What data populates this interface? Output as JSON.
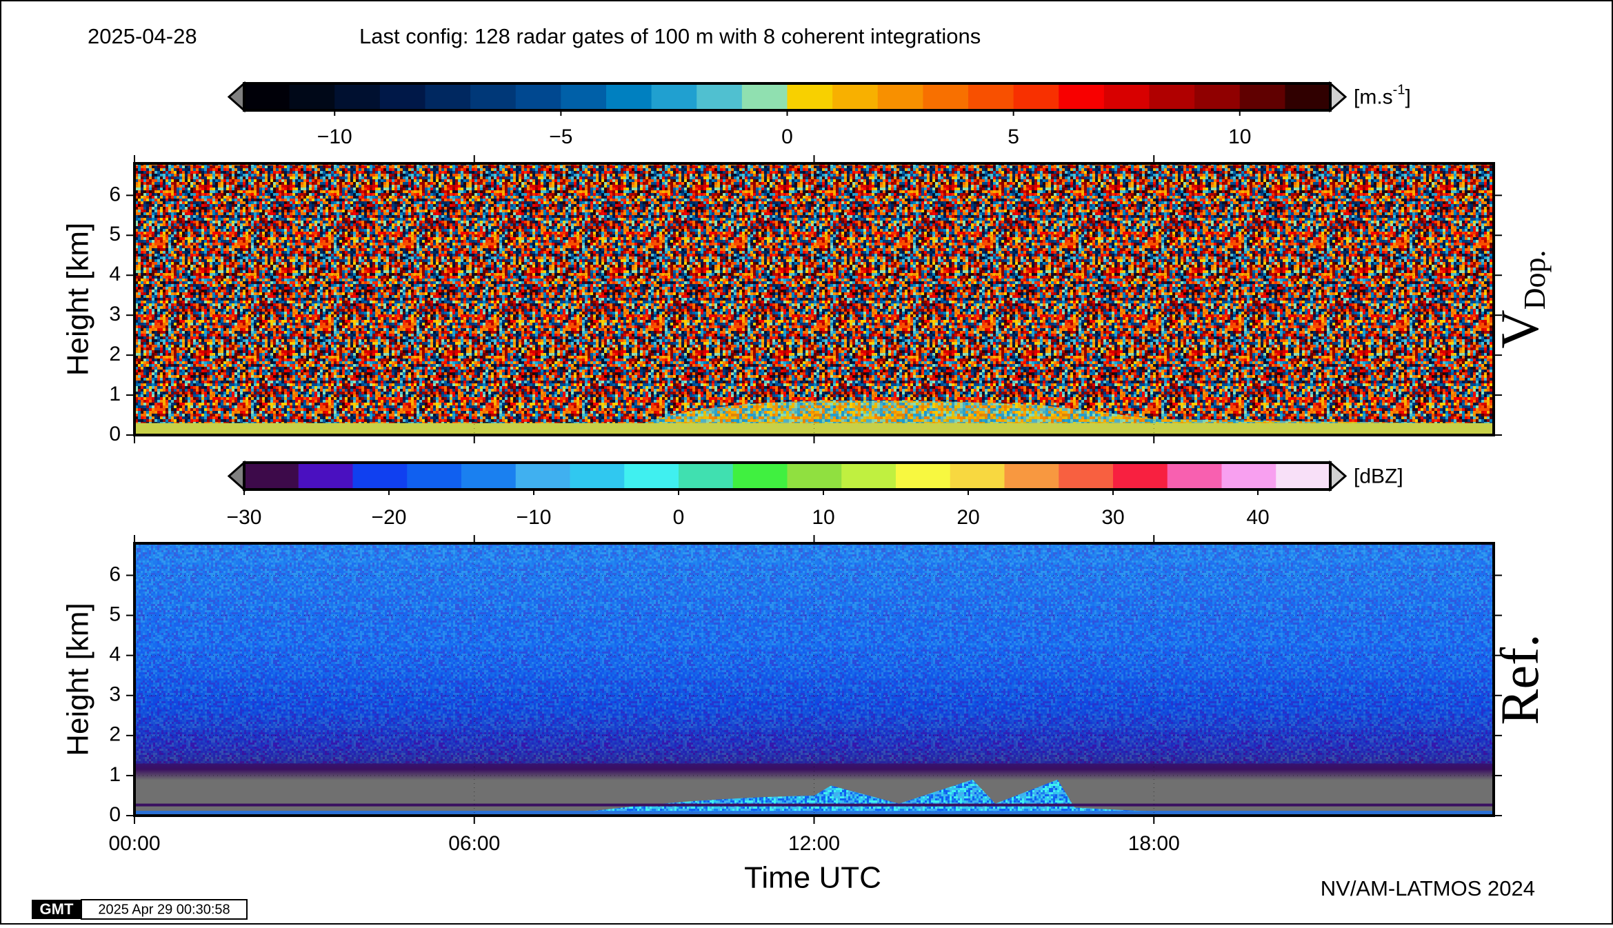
{
  "header": {
    "date": "2025-04-28",
    "config": "Last config: 128 radar gates of 100 m with 8 coherent integrations"
  },
  "chart_data": [
    {
      "type": "heatmap",
      "panel_label": "V",
      "panel_label_sub": "Dop.",
      "ylabel": "Height [km]",
      "ylim": [
        0,
        6.8
      ],
      "yticks": [
        0,
        1,
        2,
        3,
        4,
        5,
        6
      ],
      "xlim": [
        0,
        24
      ],
      "xticks": [
        0,
        6,
        12,
        18
      ],
      "grid": true,
      "colorbar": {
        "unit": [
          "[m.s",
          "-1",
          "]"
        ],
        "lim": [
          -12,
          12
        ],
        "ticks": [
          {
            "value": -10,
            "label": "−10"
          },
          {
            "value": -5,
            "label": "−5"
          },
          0,
          5,
          10
        ],
        "colors": [
          "#000008",
          "#000818",
          "#001030",
          "#001848",
          "#002860",
          "#003878",
          "#004890",
          "#0060a8",
          "#0080c0",
          "#20a0d0",
          "#50c0d0",
          "#90e0b0",
          "#f8d000",
          "#f8b000",
          "#f89000",
          "#f87000",
          "#f85000",
          "#f83000",
          "#f80000",
          "#d80000",
          "#b00000",
          "#900000",
          "#600000",
          "#300000"
        ]
      }
    },
    {
      "type": "heatmap",
      "panel_label": "Ref.",
      "ylabel": "Height [km]",
      "xlabel": "Time UTC",
      "ylim": [
        0,
        6.8
      ],
      "yticks": [
        0,
        1,
        2,
        3,
        4,
        5,
        6
      ],
      "xlim": [
        0,
        24
      ],
      "xticks": [
        {
          "value": 0,
          "label": "00:00"
        },
        {
          "value": 6,
          "label": "06:00"
        },
        {
          "value": 12,
          "label": "12:00"
        },
        {
          "value": 18,
          "label": "18:00"
        }
      ],
      "grid": true,
      "colorbar": {
        "unit": [
          "[dBZ]"
        ],
        "lim": [
          -30,
          45
        ],
        "ticks": [
          {
            "value": -30,
            "label": "−30"
          },
          {
            "value": -20,
            "label": "−20"
          },
          {
            "value": -10,
            "label": "−10"
          },
          0,
          10,
          20,
          30,
          40
        ],
        "colors": [
          "#3d0a4a",
          "#4a10c0",
          "#1040f0",
          "#1060f0",
          "#1a80f0",
          "#40b0f0",
          "#30c8f0",
          "#40f0f0",
          "#40e0b0",
          "#40f040",
          "#90e040",
          "#c0f040",
          "#f8f840",
          "#f8d840",
          "#f89840",
          "#f86040",
          "#f82040",
          "#f860b0",
          "#f8a0f0",
          "#f8e0f8"
        ]
      }
    }
  ],
  "footer": {
    "credit": "NV/AM-LATMOS 2024",
    "logo": "GMT",
    "timestamp": "2025 Apr 29 00:30:58"
  }
}
